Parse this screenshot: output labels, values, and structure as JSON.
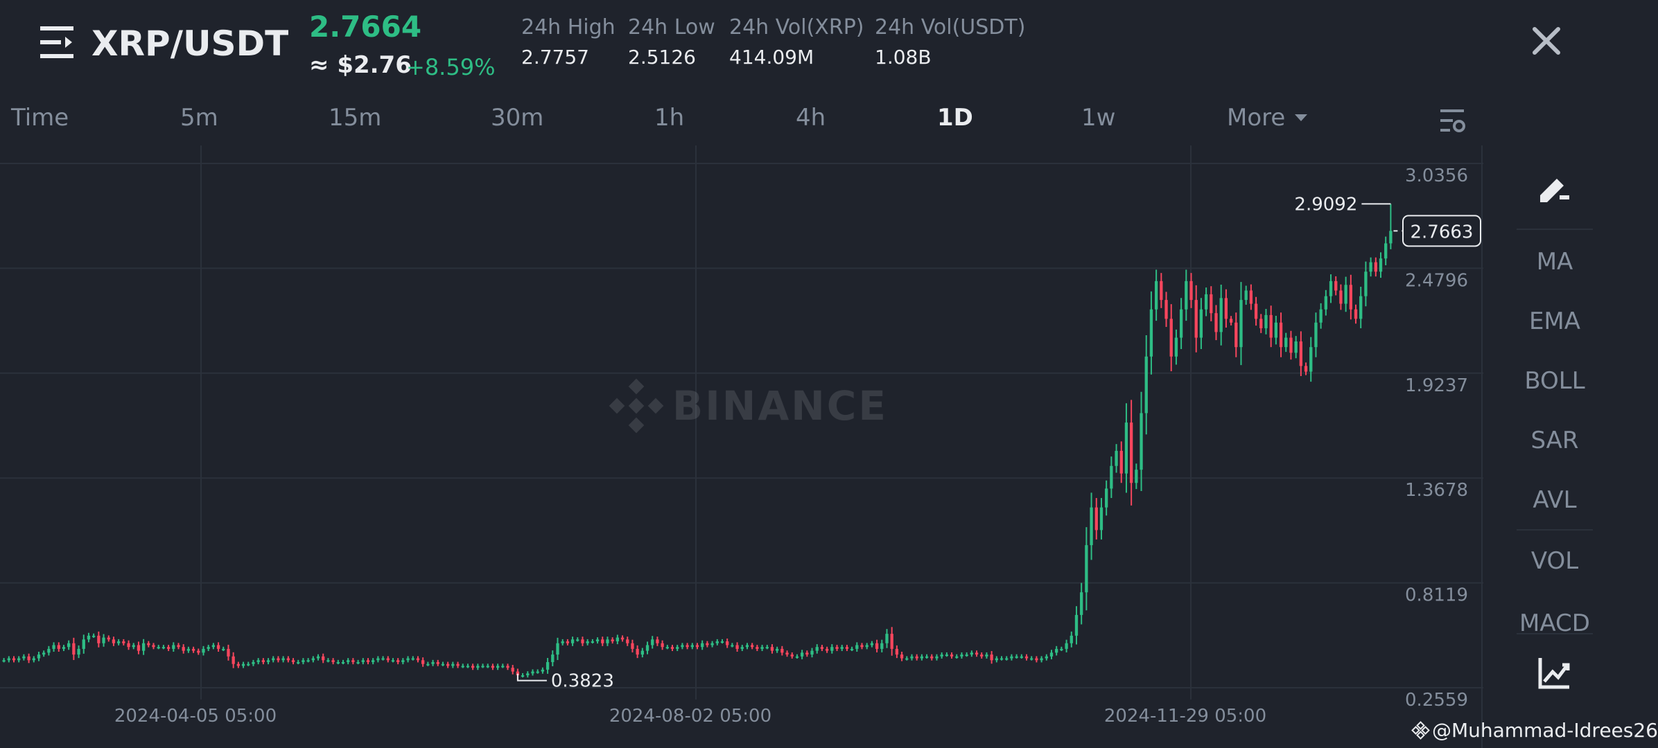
{
  "header": {
    "pair": "XRP/USDT",
    "last_price": "2.7664",
    "usd_price": "≈ $2.76",
    "change": "+8.59%",
    "stats": [
      {
        "label": "24h High",
        "value": "2.7757"
      },
      {
        "label": "24h Low",
        "value": "2.5126"
      },
      {
        "label": "24h Vol(XRP)",
        "value": "414.09M"
      },
      {
        "label": "24h Vol(USDT)",
        "value": "1.08B"
      }
    ],
    "icons": {
      "menu": "menu-icon",
      "close": "close-icon"
    }
  },
  "timeframes": {
    "items": [
      "Time",
      "5m",
      "15m",
      "30m",
      "1h",
      "4h",
      "1D",
      "1w"
    ],
    "active": "1D",
    "more_label": "More",
    "settings_icon": "chart-settings-icon"
  },
  "watermark": "BINANCE",
  "chart_data": {
    "type": "candlestick",
    "interval": "1D",
    "y_ticks": [
      "3.0356",
      "2.4796",
      "1.9237",
      "1.3678",
      "0.8119",
      "0.2559"
    ],
    "ylim": [
      0.2559,
      3.0356
    ],
    "x_ticks": [
      "2024-04-05 05:00",
      "2024-08-02 05:00",
      "2024-11-29 05:00"
    ],
    "high_marker": "2.9092",
    "low_marker": "0.3823",
    "current_price_label": "2.7663",
    "closes": [
      0.49,
      0.5,
      0.49,
      0.5,
      0.51,
      0.49,
      0.5,
      0.52,
      0.53,
      0.55,
      0.57,
      0.55,
      0.56,
      0.58,
      0.52,
      0.55,
      0.6,
      0.62,
      0.62,
      0.58,
      0.61,
      0.6,
      0.58,
      0.59,
      0.58,
      0.56,
      0.57,
      0.54,
      0.58,
      0.57,
      0.56,
      0.56,
      0.56,
      0.55,
      0.57,
      0.56,
      0.54,
      0.55,
      0.54,
      0.53,
      0.55,
      0.56,
      0.57,
      0.55,
      0.55,
      0.51,
      0.47,
      0.46,
      0.47,
      0.47,
      0.48,
      0.49,
      0.48,
      0.49,
      0.5,
      0.49,
      0.5,
      0.49,
      0.48,
      0.48,
      0.49,
      0.49,
      0.5,
      0.51,
      0.49,
      0.49,
      0.48,
      0.48,
      0.48,
      0.49,
      0.48,
      0.48,
      0.49,
      0.48,
      0.49,
      0.5,
      0.5,
      0.49,
      0.49,
      0.48,
      0.49,
      0.5,
      0.5,
      0.49,
      0.47,
      0.47,
      0.48,
      0.47,
      0.47,
      0.46,
      0.47,
      0.46,
      0.46,
      0.46,
      0.45,
      0.46,
      0.46,
      0.46,
      0.45,
      0.46,
      0.46,
      0.45,
      0.43,
      0.41,
      0.41,
      0.42,
      0.43,
      0.43,
      0.44,
      0.48,
      0.52,
      0.58,
      0.59,
      0.58,
      0.6,
      0.6,
      0.58,
      0.59,
      0.59,
      0.6,
      0.58,
      0.6,
      0.59,
      0.61,
      0.6,
      0.58,
      0.55,
      0.52,
      0.54,
      0.57,
      0.6,
      0.58,
      0.56,
      0.56,
      0.55,
      0.56,
      0.57,
      0.56,
      0.57,
      0.56,
      0.58,
      0.57,
      0.58,
      0.59,
      0.59,
      0.57,
      0.57,
      0.55,
      0.56,
      0.57,
      0.56,
      0.55,
      0.56,
      0.56,
      0.54,
      0.55,
      0.53,
      0.52,
      0.51,
      0.51,
      0.53,
      0.52,
      0.54,
      0.56,
      0.55,
      0.54,
      0.56,
      0.55,
      0.56,
      0.55,
      0.55,
      0.57,
      0.56,
      0.57,
      0.58,
      0.55,
      0.58,
      0.63,
      0.55,
      0.52,
      0.5,
      0.5,
      0.51,
      0.5,
      0.51,
      0.51,
      0.5,
      0.51,
      0.52,
      0.52,
      0.51,
      0.51,
      0.52,
      0.52,
      0.53,
      0.52,
      0.51,
      0.52,
      0.49,
      0.5,
      0.5,
      0.5,
      0.51,
      0.51,
      0.51,
      0.5,
      0.5,
      0.49,
      0.5,
      0.51,
      0.53,
      0.55,
      0.55,
      0.58,
      0.62,
      0.73,
      0.85,
      1.1,
      1.3,
      1.18,
      1.3,
      1.4,
      1.52,
      1.6,
      1.48,
      1.75,
      1.43,
      1.5,
      1.8,
      2.1,
      2.35,
      2.5,
      2.4,
      2.3,
      2.1,
      2.2,
      2.35,
      2.5,
      2.4,
      2.2,
      2.35,
      2.43,
      2.33,
      2.23,
      2.41,
      2.3,
      2.28,
      2.15,
      2.4,
      2.45,
      2.38,
      2.3,
      2.25,
      2.32,
      2.2,
      2.28,
      2.15,
      2.2,
      2.12,
      2.18,
      2.05,
      2.02,
      2.15,
      2.28,
      2.35,
      2.42,
      2.5,
      2.45,
      2.38,
      2.48,
      2.35,
      2.3,
      2.42,
      2.55,
      2.6,
      2.55,
      2.62,
      2.7,
      2.7663
    ]
  },
  "indicators": {
    "draw_icon": "draw-pen-icon",
    "items": [
      "MA",
      "EMA",
      "BOLL",
      "SAR",
      "AVL",
      "VOL"
    ],
    "cut_item": "MACD",
    "depth_icon": "depth-chart-icon"
  },
  "credit": "@Muhammad-Idrees26"
}
